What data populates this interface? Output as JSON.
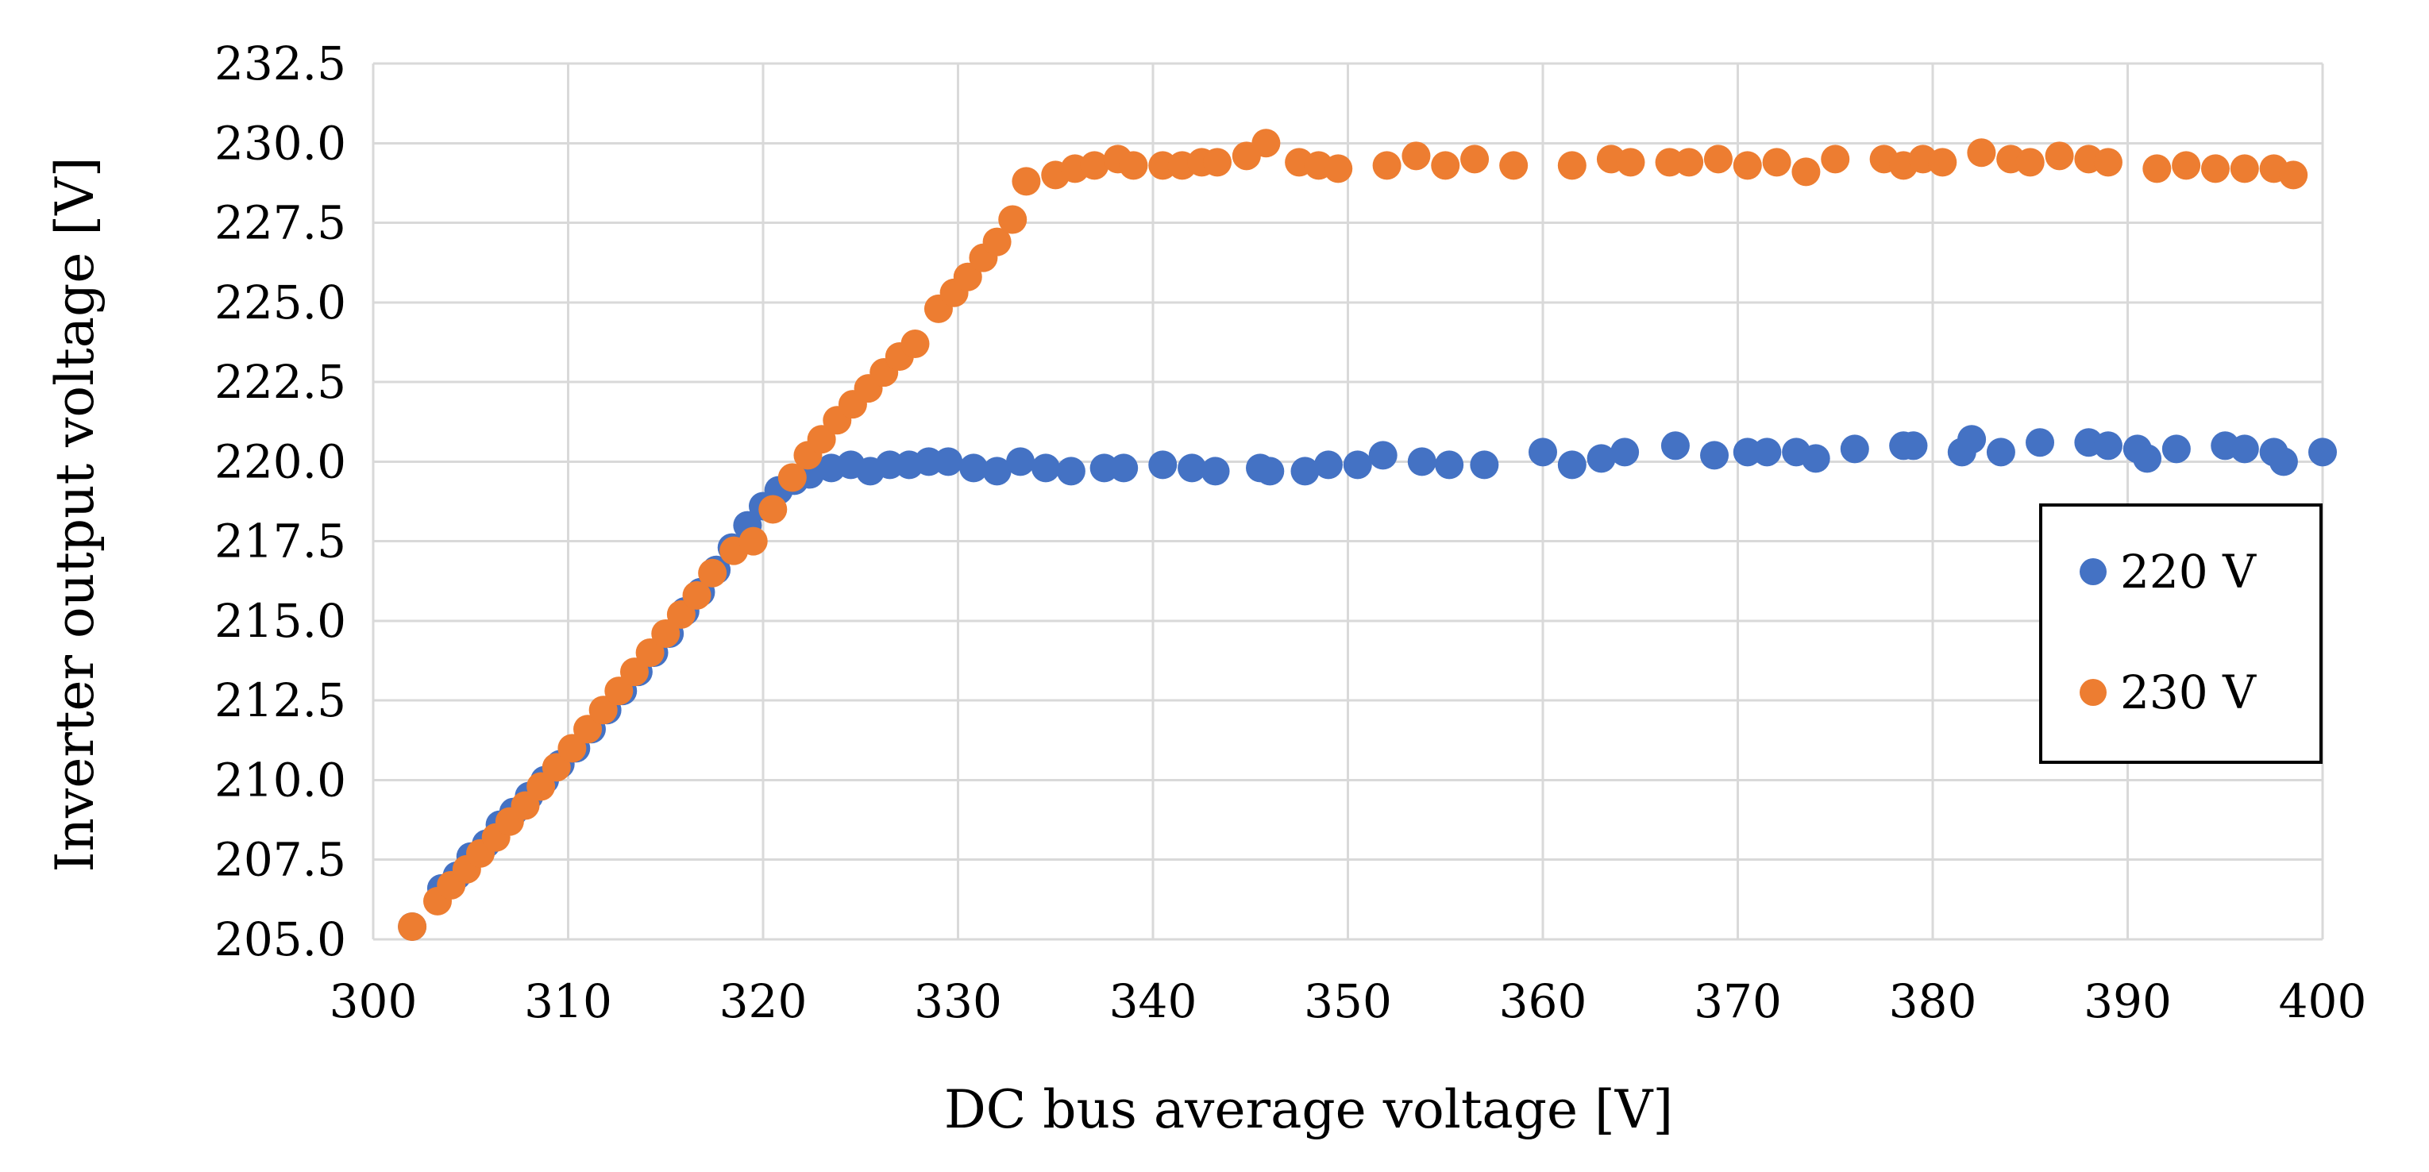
{
  "chart_data": {
    "type": "scatter",
    "title": "",
    "xlabel": "DC bus average voltage [V]",
    "ylabel": "Inverter output voltage [V]",
    "xlim": [
      300,
      400
    ],
    "ylim": [
      205.0,
      232.5
    ],
    "xticks": [
      300,
      310,
      320,
      330,
      340,
      350,
      360,
      370,
      380,
      390,
      400
    ],
    "yticks": [
      205.0,
      207.5,
      210.0,
      212.5,
      215.0,
      217.5,
      220.0,
      222.5,
      225.0,
      227.5,
      230.0,
      232.5
    ],
    "xtick_labels": [
      "300",
      "310",
      "320",
      "330",
      "340",
      "350",
      "360",
      "370",
      "380",
      "390",
      "400"
    ],
    "ytick_labels": [
      "205.0",
      "207.5",
      "210.0",
      "212.5",
      "215.0",
      "217.5",
      "220.0",
      "222.5",
      "225.0",
      "227.5",
      "230.0",
      "232.5"
    ],
    "grid": true,
    "legend_position": "right",
    "series": [
      {
        "name": "220 V",
        "color": "#4472c4",
        "x": [
          302.0,
          303.5,
          304.3,
          305.0,
          305.8,
          306.5,
          307.2,
          308.0,
          308.8,
          309.6,
          310.4,
          311.2,
          312.0,
          312.8,
          313.6,
          314.4,
          315.2,
          316.0,
          316.8,
          317.6,
          318.4,
          319.2,
          320.0,
          320.8,
          321.6,
          322.4,
          323.5,
          324.5,
          325.5,
          326.5,
          327.5,
          328.5,
          329.5,
          330.8,
          332.0,
          333.2,
          334.5,
          335.8,
          337.5,
          338.5,
          340.5,
          342.0,
          343.2,
          345.5,
          346.0,
          347.8,
          349.0,
          350.5,
          351.8,
          353.8,
          355.2,
          357.0,
          360.0,
          361.5,
          363.0,
          364.2,
          366.8,
          368.8,
          370.5,
          371.5,
          373.0,
          374.0,
          376.0,
          378.5,
          379.0,
          381.5,
          382.0,
          383.5,
          385.5,
          388.0,
          389.0,
          390.5,
          391.0,
          392.5,
          395.0,
          396.0,
          397.5,
          398.0,
          400.0
        ],
        "y": [
          205.4,
          206.6,
          207.0,
          207.6,
          208.0,
          208.6,
          209.0,
          209.5,
          210.0,
          210.5,
          211.0,
          211.6,
          212.2,
          212.8,
          213.4,
          214.0,
          214.6,
          215.3,
          215.9,
          216.6,
          217.3,
          218.0,
          218.6,
          219.1,
          219.4,
          219.6,
          219.8,
          219.9,
          219.7,
          219.9,
          219.9,
          220.0,
          220.0,
          219.8,
          219.7,
          220.0,
          219.8,
          219.7,
          219.8,
          219.8,
          219.9,
          219.8,
          219.7,
          219.8,
          219.7,
          219.7,
          219.9,
          219.9,
          220.2,
          220.0,
          219.9,
          219.9,
          220.3,
          219.9,
          220.1,
          220.3,
          220.5,
          220.2,
          220.3,
          220.3,
          220.3,
          220.1,
          220.4,
          220.5,
          220.5,
          220.3,
          220.7,
          220.3,
          220.6,
          220.6,
          220.5,
          220.4,
          220.1,
          220.4,
          220.5,
          220.4,
          220.3,
          220.0,
          220.3
        ]
      },
      {
        "name": "230 V",
        "color": "#ed7d31",
        "x": [
          302.0,
          303.3,
          304.0,
          304.8,
          305.5,
          306.3,
          307.0,
          307.8,
          308.6,
          309.4,
          310.2,
          311.0,
          311.8,
          312.6,
          313.4,
          314.2,
          315.0,
          315.8,
          316.6,
          317.4,
          318.5,
          319.5,
          320.5,
          321.5,
          322.3,
          323.0,
          323.8,
          324.6,
          325.4,
          326.2,
          327.0,
          327.8,
          329.0,
          329.8,
          330.5,
          331.3,
          332.0,
          332.8,
          333.5,
          335.0,
          336.0,
          337.0,
          338.2,
          339.0,
          340.5,
          341.5,
          342.5,
          343.3,
          344.8,
          345.8,
          347.5,
          348.5,
          349.5,
          352.0,
          353.5,
          355.0,
          356.5,
          358.5,
          361.5,
          363.5,
          364.5,
          366.5,
          367.5,
          369.0,
          370.5,
          372.0,
          373.5,
          375.0,
          377.5,
          378.5,
          379.5,
          380.5,
          382.5,
          384.0,
          385.0,
          386.5,
          388.0,
          389.0,
          391.5,
          393.0,
          394.5,
          396.0,
          397.5,
          398.5
        ],
        "y": [
          205.4,
          206.2,
          206.7,
          207.2,
          207.7,
          208.2,
          208.7,
          209.2,
          209.8,
          210.4,
          211.0,
          211.6,
          212.2,
          212.8,
          213.4,
          214.0,
          214.6,
          215.2,
          215.8,
          216.5,
          217.2,
          217.5,
          218.5,
          219.5,
          220.2,
          220.7,
          221.3,
          221.8,
          222.3,
          222.8,
          223.3,
          223.7,
          224.8,
          225.3,
          225.8,
          226.4,
          226.9,
          227.6,
          228.8,
          229.0,
          229.2,
          229.3,
          229.5,
          229.3,
          229.3,
          229.3,
          229.4,
          229.4,
          229.6,
          230.0,
          229.4,
          229.3,
          229.2,
          229.3,
          229.6,
          229.3,
          229.5,
          229.3,
          229.3,
          229.5,
          229.4,
          229.4,
          229.4,
          229.5,
          229.3,
          229.4,
          229.1,
          229.5,
          229.5,
          229.3,
          229.5,
          229.4,
          229.7,
          229.5,
          229.4,
          229.6,
          229.5,
          229.4,
          229.2,
          229.3,
          229.2,
          229.2,
          229.2,
          229.0
        ]
      }
    ]
  }
}
